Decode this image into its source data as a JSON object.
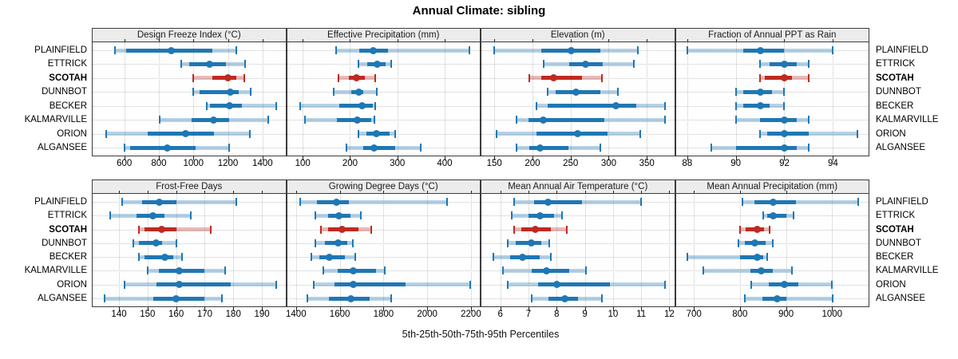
{
  "title": "Annual Climate: sibling",
  "caption": "5th-25th-50th-75th-95th Percentiles",
  "sites": [
    "PLAINFIELD",
    "ETTRICK",
    "SCOTAH",
    "DUNNBOT",
    "BECKER",
    "KALMARVILLE",
    "ORION",
    "ALGANSEE"
  ],
  "highlight_site": "SCOTAH",
  "colors": {
    "series": "#1f77b4",
    "series_light": "rgba(31,119,180,0.32)",
    "highlight": "#bf2a21",
    "highlight_light": "rgba(191,42,33,0.32)",
    "strip_bg": "#ececec",
    "panel_border": "#3c3c3c",
    "grid": "#c6c6c6"
  },
  "chart_data": {
    "type": "scatter",
    "subtype": "percentile-interval-dotplot",
    "title": "Annual Climate: sibling",
    "xlabel": "5th-25th-50th-75th-95th Percentiles",
    "legend_position": "none",
    "grid": "dotted",
    "percentile_labels": [
      "p5",
      "p25",
      "p50",
      "p75",
      "p95"
    ],
    "panels": [
      {
        "title": "Design Freeze Index (°C)",
        "grid_row": 0,
        "grid_col": 0,
        "xticks": [
          600,
          800,
          1000,
          1200,
          1400
        ],
        "xlim": [
          412,
          1537
        ],
        "series": [
          {
            "site": "PLAINFIELD",
            "values": [
              548,
              609,
              874,
              1112,
              1248
            ]
          },
          {
            "site": "ETTRICK",
            "values": [
              930,
              975,
              1095,
              1190,
              1300
            ]
          },
          {
            "site": "SCOTAH",
            "values": [
              1000,
              1110,
              1200,
              1250,
              1295
            ]
          },
          {
            "site": "DUNNBOT",
            "values": [
              1000,
              1035,
              1215,
              1260,
              1330
            ]
          },
          {
            "site": "BECKER",
            "values": [
              1075,
              1095,
              1210,
              1280,
              1480
            ]
          },
          {
            "site": "KALMARVILLE",
            "values": [
              805,
              990,
              1115,
              1205,
              1435
            ]
          },
          {
            "site": "ORION",
            "values": [
              495,
              735,
              955,
              1120,
              1325
            ]
          },
          {
            "site": "ALGANSEE",
            "values": [
              600,
              635,
              848,
              1012,
              1205
            ]
          }
        ]
      },
      {
        "title": "Effective Precipitation (mm)",
        "grid_row": 0,
        "grid_col": 1,
        "xticks": [
          100,
          200,
          300,
          400
        ],
        "xlim": [
          65,
          476
        ],
        "series": [
          {
            "site": "PLAINFIELD",
            "values": [
              170,
              220,
              249,
              280,
              453
            ]
          },
          {
            "site": "ETTRICK",
            "values": [
              218,
              236,
              257,
              276,
              287
            ]
          },
          {
            "site": "SCOTAH",
            "values": [
              176,
              197,
              214,
              231,
              253
            ]
          },
          {
            "site": "DUNNBOT",
            "values": [
              166,
              203,
              218,
              228,
              257
            ]
          },
          {
            "site": "BECKER",
            "values": [
              94,
              178,
              225,
              248,
              253
            ]
          },
          {
            "site": "KALMARVILLE",
            "values": [
              105,
              172,
              216,
              245,
              252
            ]
          },
          {
            "site": "ORION",
            "values": [
              218,
              234,
              256,
              283,
              296
            ]
          },
          {
            "site": "ALGANSEE",
            "values": [
              192,
              228,
              251,
              295,
              349
            ]
          }
        ]
      },
      {
        "title": "Elevation (m)",
        "grid_row": 0,
        "grid_col": 2,
        "xticks": [
          150,
          200,
          250,
          300,
          350
        ],
        "xlim": [
          132,
          387
        ],
        "series": [
          {
            "site": "PLAINFIELD",
            "values": [
              150,
              212,
              251,
              289,
              338
            ]
          },
          {
            "site": "ETTRICK",
            "values": [
              215,
              248,
              270,
              292,
              333
            ]
          },
          {
            "site": "SCOTAH",
            "values": [
              196,
              212,
              228,
              265,
              291
            ]
          },
          {
            "site": "DUNNBOT",
            "values": [
              220,
              230,
              257,
              289,
              312
            ]
          },
          {
            "site": "BECKER",
            "values": [
              205,
              220,
              309,
              336,
              374
            ]
          },
          {
            "site": "KALMARVILLE",
            "values": [
              179,
              195,
              214,
              294,
              374
            ]
          },
          {
            "site": "ORION",
            "values": [
              153,
              205,
              259,
              298,
              341
            ]
          },
          {
            "site": "ALGANSEE",
            "values": [
              179,
              196,
              210,
              247,
              289
            ]
          }
        ]
      },
      {
        "title": "Fraction of Annual PPT as Rain",
        "grid_row": 0,
        "grid_col": 3,
        "xticks": [
          88,
          90,
          92,
          94
        ],
        "xlim": [
          87.5,
          95.5
        ],
        "series": [
          {
            "site": "PLAINFIELD",
            "values": [
              88,
              90.3,
              91,
              92,
              94
            ]
          },
          {
            "site": "ETTRICK",
            "values": [
              91,
              91.4,
              92,
              92.5,
              93
            ]
          },
          {
            "site": "SCOTAH",
            "values": [
              91,
              91.2,
              92,
              92.3,
              93
            ]
          },
          {
            "site": "DUNNBOT",
            "values": [
              90,
              90.3,
              91,
              91.5,
              92
            ]
          },
          {
            "site": "BECKER",
            "values": [
              90,
              90.3,
              91,
              91.4,
              92
            ]
          },
          {
            "site": "KALMARVILLE",
            "values": [
              90,
              91,
              92,
              92.5,
              93
            ]
          },
          {
            "site": "ORION",
            "values": [
              91,
              91.3,
              92,
              93,
              95
            ]
          },
          {
            "site": "ALGANSEE",
            "values": [
              89,
              90,
              92,
              92.5,
              93
            ]
          }
        ]
      },
      {
        "title": "Frost-Free Days",
        "grid_row": 1,
        "grid_col": 0,
        "xticks": [
          140,
          150,
          160,
          170,
          180,
          190
        ],
        "xlim": [
          130.5,
          198.5
        ],
        "series": [
          {
            "site": "PLAINFIELD",
            "values": [
              141,
              148,
              154,
              160,
              181
            ]
          },
          {
            "site": "ETTRICK",
            "values": [
              137,
              146,
              152,
              156,
              165
            ]
          },
          {
            "site": "SCOTAH",
            "values": [
              147,
              149,
              155,
              160,
              172
            ]
          },
          {
            "site": "DUNNBOT",
            "values": [
              145,
              147,
              153,
              155,
              160
            ]
          },
          {
            "site": "BECKER",
            "values": [
              147,
              149,
              156,
              159,
              162
            ]
          },
          {
            "site": "KALMARVILLE",
            "values": [
              150,
              154,
              161,
              170,
              177
            ]
          },
          {
            "site": "ORION",
            "values": [
              142,
              153,
              161,
              179,
              195
            ]
          },
          {
            "site": "ALGANSEE",
            "values": [
              135,
              152,
              160,
              170,
              176
            ]
          }
        ]
      },
      {
        "title": "Growing Degree Days (°C)",
        "grid_row": 1,
        "grid_col": 1,
        "xticks": [
          1400,
          1600,
          1800,
          2000,
          2200
        ],
        "xlim": [
          1355,
          2244
        ],
        "series": [
          {
            "site": "PLAINFIELD",
            "values": [
              1420,
              1495,
              1585,
              1640,
              2090
            ]
          },
          {
            "site": "ETTRICK",
            "values": [
              1490,
              1545,
              1595,
              1650,
              1695
            ]
          },
          {
            "site": "SCOTAH",
            "values": [
              1515,
              1545,
              1610,
              1685,
              1745
            ]
          },
          {
            "site": "DUNNBOT",
            "values": [
              1487,
              1532,
              1593,
              1635,
              1660
            ]
          },
          {
            "site": "BECKER",
            "values": [
              1470,
              1507,
              1552,
              1623,
              1670
            ]
          },
          {
            "site": "KALMARVILLE",
            "values": [
              1525,
              1590,
              1660,
              1765,
              1805
            ]
          },
          {
            "site": "ORION",
            "values": [
              1480,
              1575,
              1660,
              1900,
              2195
            ]
          },
          {
            "site": "ALGANSEE",
            "values": [
              1450,
              1550,
              1650,
              1735,
              1835
            ]
          }
        ]
      },
      {
        "title": "Mean Annual Air Temperature (°C)",
        "grid_row": 1,
        "grid_col": 2,
        "xticks": [
          6,
          7,
          8,
          9,
          10,
          11,
          12
        ],
        "xlim": [
          5.3,
          12.2
        ],
        "series": [
          {
            "site": "PLAINFIELD",
            "values": [
              6.5,
              7.2,
              7.7,
              8.9,
              11.0
            ]
          },
          {
            "site": "ETTRICK",
            "values": [
              6.4,
              7.0,
              7.4,
              7.9,
              8.2
            ]
          },
          {
            "site": "SCOTAH",
            "values": [
              6.5,
              6.75,
              7.25,
              7.8,
              8.35
            ]
          },
          {
            "site": "DUNNBOT",
            "values": [
              6.25,
              6.55,
              7.1,
              7.45,
              7.75
            ]
          },
          {
            "site": "BECKER",
            "values": [
              5.75,
              6.35,
              6.8,
              7.4,
              7.8
            ]
          },
          {
            "site": "KALMARVILLE",
            "values": [
              6.1,
              7.1,
              7.65,
              8.45,
              9.05
            ]
          },
          {
            "site": "ORION",
            "values": [
              6.25,
              7.35,
              8.0,
              9.9,
              11.85
            ]
          },
          {
            "site": "ALGANSEE",
            "values": [
              7.1,
              7.7,
              8.3,
              8.75,
              9.6
            ]
          }
        ]
      },
      {
        "title": "Mean Annual Precipitation (mm)",
        "grid_row": 1,
        "grid_col": 3,
        "xticks": [
          700,
          800,
          900,
          1000
        ],
        "xlim": [
          659,
          1081
        ],
        "series": [
          {
            "site": "PLAINFIELD",
            "values": [
              805,
              832,
              873,
              921,
              1056
            ]
          },
          {
            "site": "ETTRICK",
            "values": [
              851,
              860,
              872,
              900,
              917
            ]
          },
          {
            "site": "SCOTAH",
            "values": [
              800,
              812,
              838,
              853,
              865
            ]
          },
          {
            "site": "DUNNBOT",
            "values": [
              796,
              810,
              833,
              855,
              871
            ]
          },
          {
            "site": "BECKER",
            "values": [
              685,
              800,
              837,
              850,
              860
            ]
          },
          {
            "site": "KALMARVILLE",
            "values": [
              720,
              823,
              847,
              872,
              913
            ]
          },
          {
            "site": "ORION",
            "values": [
              825,
              862,
              897,
              926,
              1000
            ]
          },
          {
            "site": "ALGANSEE",
            "values": [
              810,
              849,
              881,
              901,
              1001
            ]
          }
        ]
      }
    ]
  }
}
